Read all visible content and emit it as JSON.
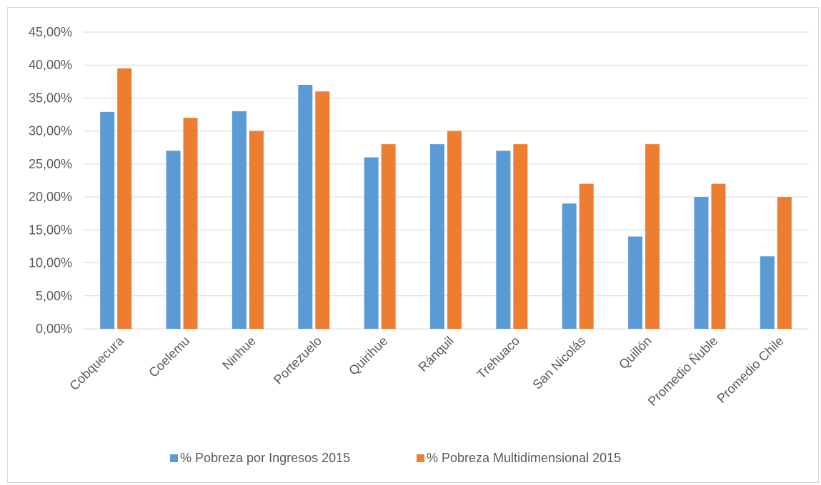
{
  "chart_data": {
    "type": "bar",
    "title": "",
    "xlabel": "",
    "ylabel": "",
    "categories": [
      "Cobquecura",
      "Coelemu",
      "Ninhue",
      "Portezuelo",
      "Quirihue",
      "Ránquil",
      "Trehuaco",
      "San Nicolás",
      "Quillón",
      "Promedio Ñuble",
      "Promedio Chile"
    ],
    "series": [
      {
        "name": "% Pobreza por Ingresos 2015",
        "color": "#5b9bd5",
        "values": [
          32.9,
          27.0,
          33.0,
          37.0,
          26.0,
          28.0,
          27.0,
          19.0,
          14.0,
          20.0,
          11.0
        ]
      },
      {
        "name": "% Pobreza Multidimensional 2015",
        "color": "#ed7d31",
        "values": [
          39.5,
          32.0,
          30.0,
          36.0,
          28.0,
          30.0,
          28.0,
          22.0,
          28.0,
          22.0,
          20.0
        ]
      }
    ],
    "ylim": [
      0,
      45
    ],
    "yticks": [
      0,
      5,
      10,
      15,
      20,
      25,
      30,
      35,
      40,
      45
    ],
    "ytick_labels": [
      "0,00%",
      "5,00%",
      "10,00%",
      "15,00%",
      "20,00%",
      "25,00%",
      "30,00%",
      "35,00%",
      "40,00%",
      "45,00%"
    ],
    "grid": true,
    "legend_position": "bottom",
    "gridline_color": "#d9d9d9",
    "text_color": "#595959"
  }
}
